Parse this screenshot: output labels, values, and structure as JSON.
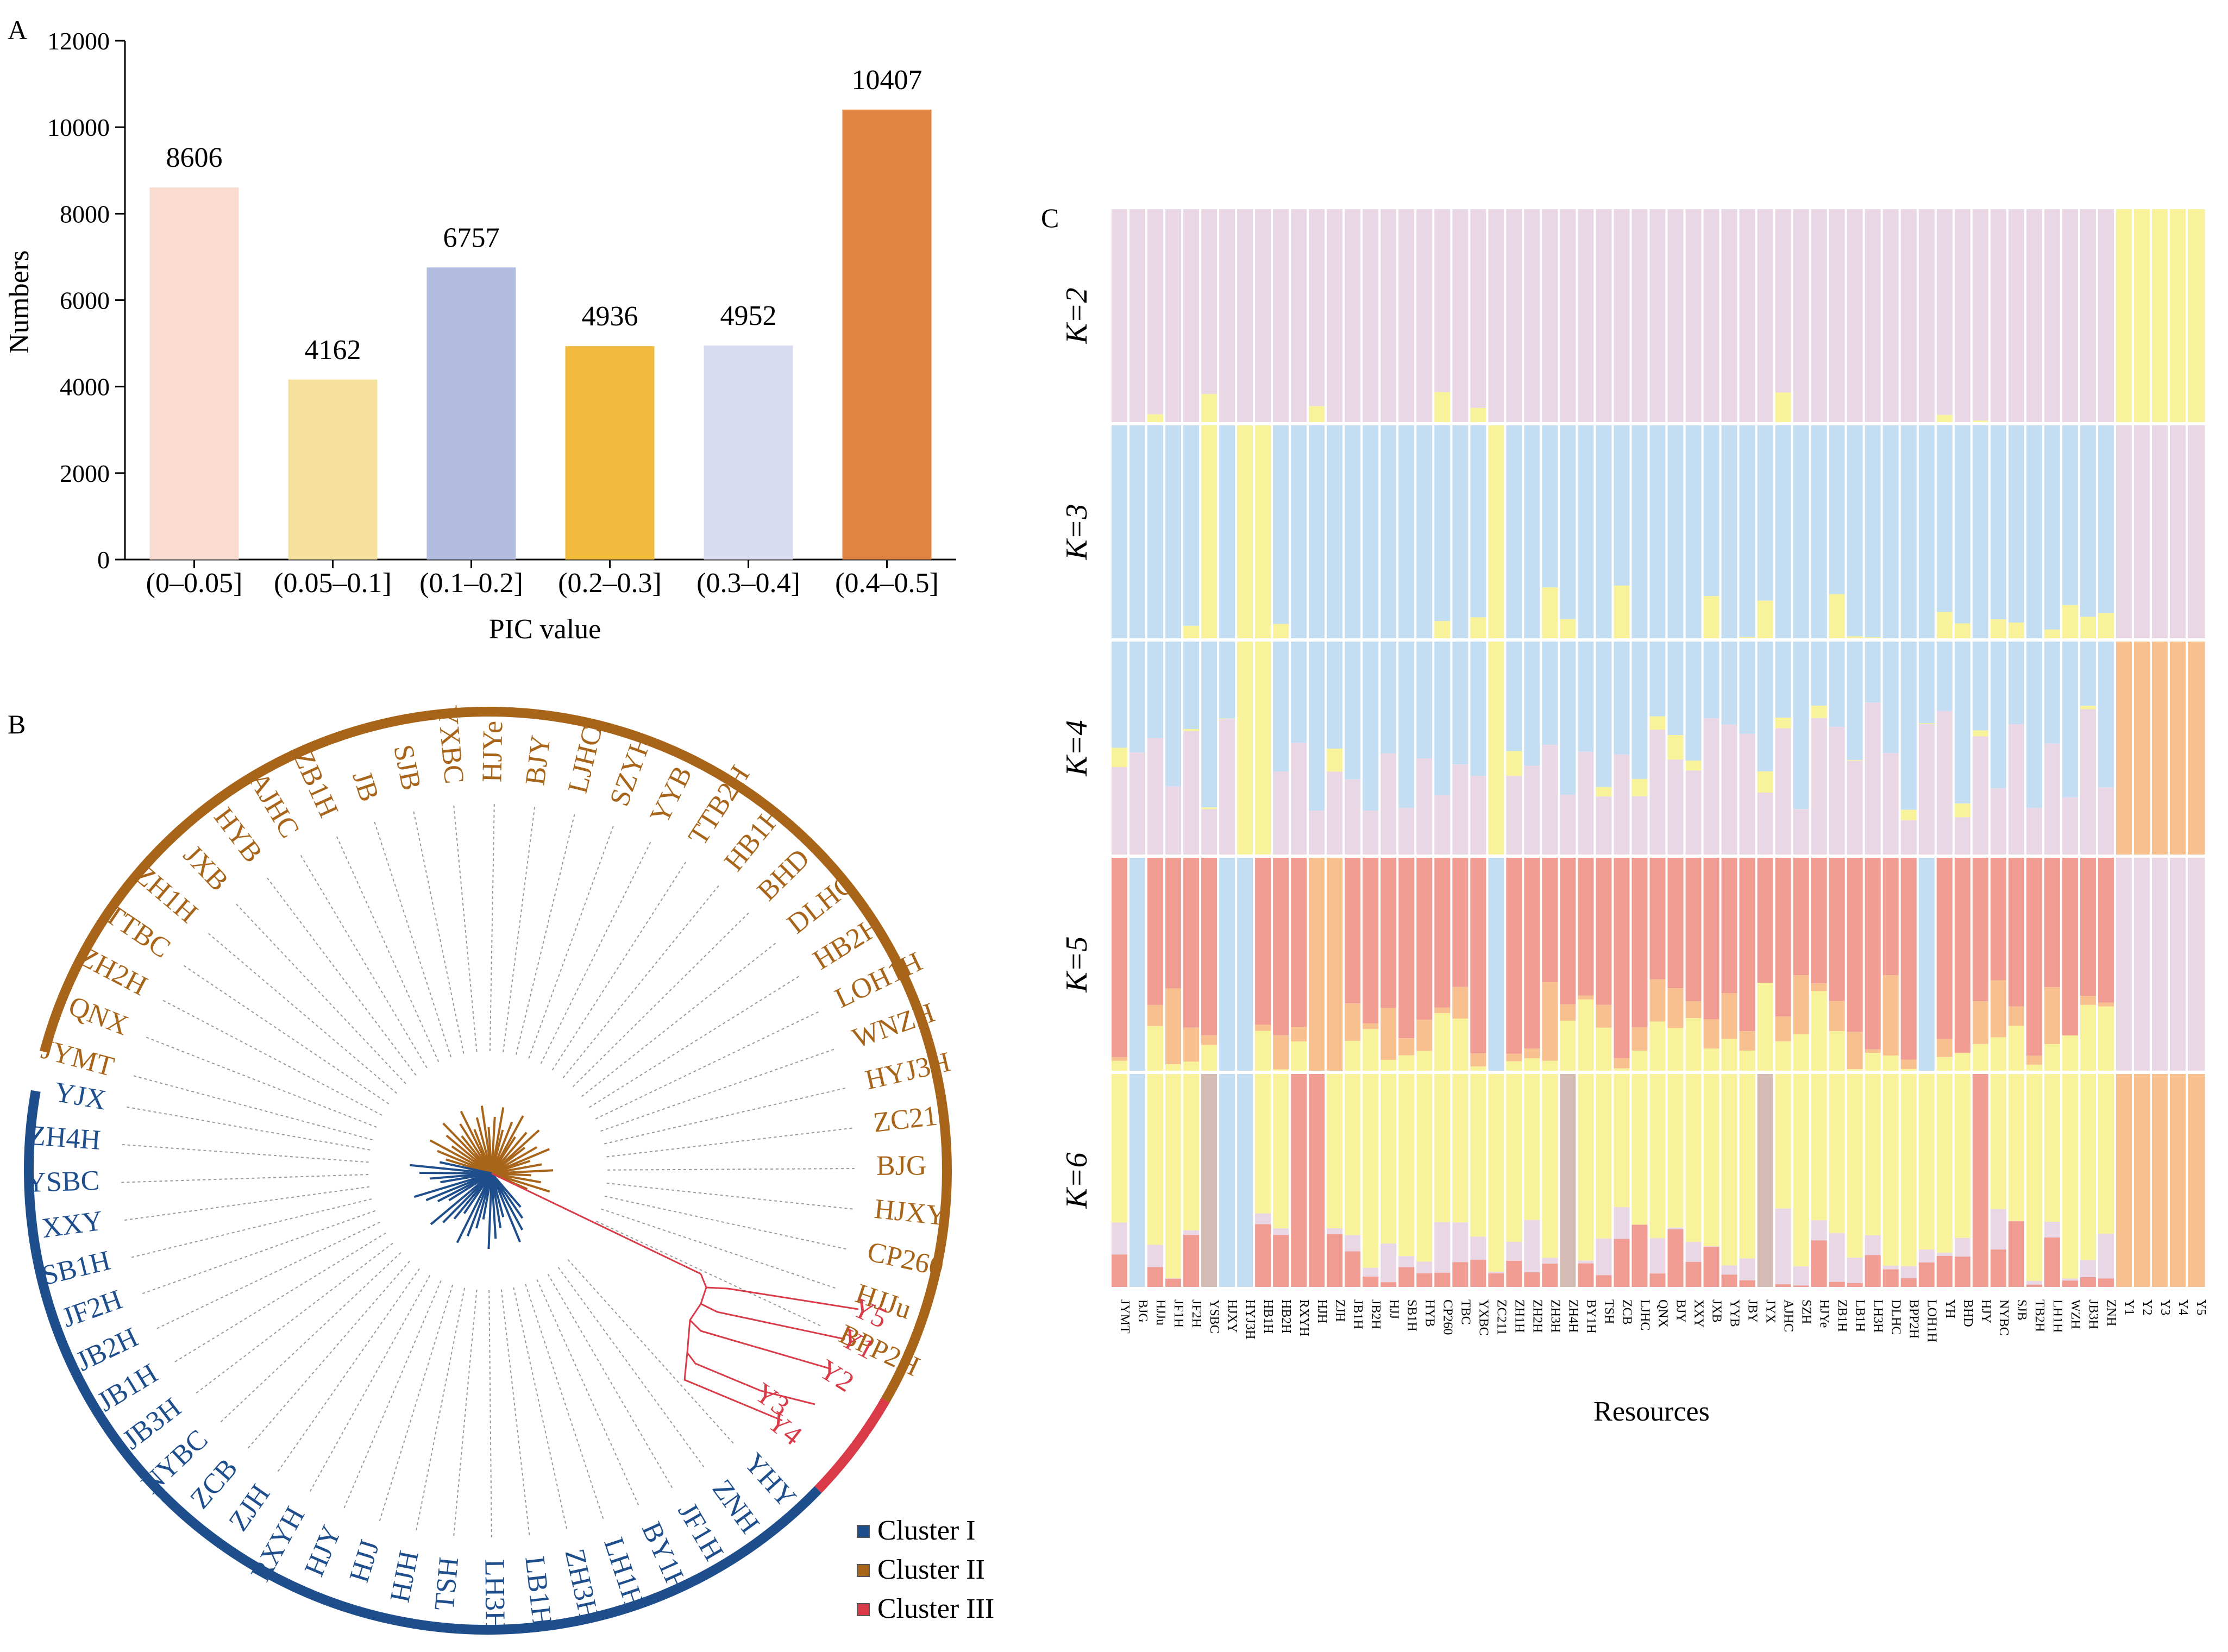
{
  "panels": {
    "a": "A",
    "b": "B",
    "c": "C"
  },
  "chart_data": [
    {
      "type": "bar",
      "categories": [
        "(0–0.05]",
        "(0.05–0.1]",
        "(0.1–0.2]",
        "(0.2–0.3]",
        "(0.3–0.4]",
        "(0.4–0.5]"
      ],
      "values": [
        8606,
        4162,
        6757,
        4936,
        4952,
        10407
      ],
      "data_labels": [
        "8606",
        "4162",
        "6757",
        "4936",
        "4952",
        "10407"
      ],
      "colors": [
        "#f9dccf",
        "#f5e09d",
        "#b3bde0",
        "#f0bb3e",
        "#d9dcf0",
        "#e08444"
      ],
      "xlabel": "PIC value",
      "ylabel": "Numbers",
      "ylim": [
        0,
        12000
      ],
      "yticks": [
        "0",
        "2000",
        "4000",
        "6000",
        "8000",
        "10000",
        "12000"
      ]
    },
    {
      "type": "diagram",
      "subtype": "circular-dendrogram",
      "legend": [
        {
          "name": "Cluster I",
          "color": "#1f4e8c"
        },
        {
          "name": "Cluster II",
          "color": "#a8651a"
        },
        {
          "name": "Cluster III",
          "color": "#d93b48"
        }
      ],
      "cluster_ii": [
        "JYMT",
        "QNX",
        "ZH2H",
        "TTBC",
        "ZH1H",
        "JXB",
        "HYB",
        "AJHC",
        "ZB1H",
        "JB",
        "SJB",
        "YXBC",
        "HJYe",
        "BJY",
        "LJHC",
        "SZYH",
        "YYB",
        "TTB2H",
        "HB1H",
        "BHD",
        "DLHC",
        "HB2H",
        "LOH1H",
        "WNZH",
        "HYJ3H",
        "ZC211",
        "BJG",
        "HJXY",
        "CP260",
        "HJJu",
        "BPP2H"
      ],
      "cluster_iii": [
        "Y5",
        "Y1",
        "Y2",
        "Y3",
        "Y4"
      ],
      "cluster_i": [
        "YHY",
        "ZNH",
        "JF1H",
        "BY1H",
        "LH1H",
        "ZH3H",
        "LB1H",
        "LH3H",
        "TSH",
        "HJH",
        "HJJ",
        "HJY",
        "RXYH",
        "ZJH",
        "ZCB",
        "NYBC",
        "JB3H",
        "JB1H",
        "JB2H",
        "JF2H",
        "SB1H",
        "XXY",
        "YSBC",
        "ZH4H",
        "YJX"
      ]
    },
    {
      "type": "stacked-bar",
      "ylabel_prefix": "K",
      "k_labels": [
        "2",
        "3",
        "4",
        "5",
        "6"
      ],
      "xlabel": "Resources",
      "ylim": [
        0,
        1
      ],
      "component_colors": [
        "#e9d7e6",
        "#f8f29b",
        "#c3def3",
        "#f9c08f",
        "#f09c92",
        "#d4bcb4"
      ],
      "resources": [
        "JYMT",
        "BJG",
        "HJJu",
        "JF1H",
        "JF2H",
        "YSBC",
        "HJXY",
        "HYJ3H",
        "HB1H",
        "HB2H",
        "RXYH",
        "HJH",
        "ZJH",
        "JB1H",
        "JB2H",
        "HJJ",
        "SB1H",
        "HYB",
        "CP260",
        "TBC",
        "YXBC",
        "ZC211",
        "ZH1H",
        "ZH2H",
        "ZH3H",
        "ZH4H",
        "BY1H",
        "TSH",
        "ZCB",
        "LJHC",
        "QNX",
        "BJY",
        "XXY",
        "JXB",
        "YYB",
        "JBY",
        "JYX",
        "AJHC",
        "SZH",
        "HJYe",
        "ZB1H",
        "LB1H",
        "LH3H",
        "DLHC",
        "BPP2H",
        "LOH1H",
        "YH",
        "BHD",
        "HJY",
        "NYBC",
        "SJB",
        "TB2H",
        "LH1H",
        "WZH",
        "JB3H",
        "ZNH",
        "Y1",
        "Y2",
        "Y3",
        "Y4",
        "Y5"
      ]
    }
  ]
}
